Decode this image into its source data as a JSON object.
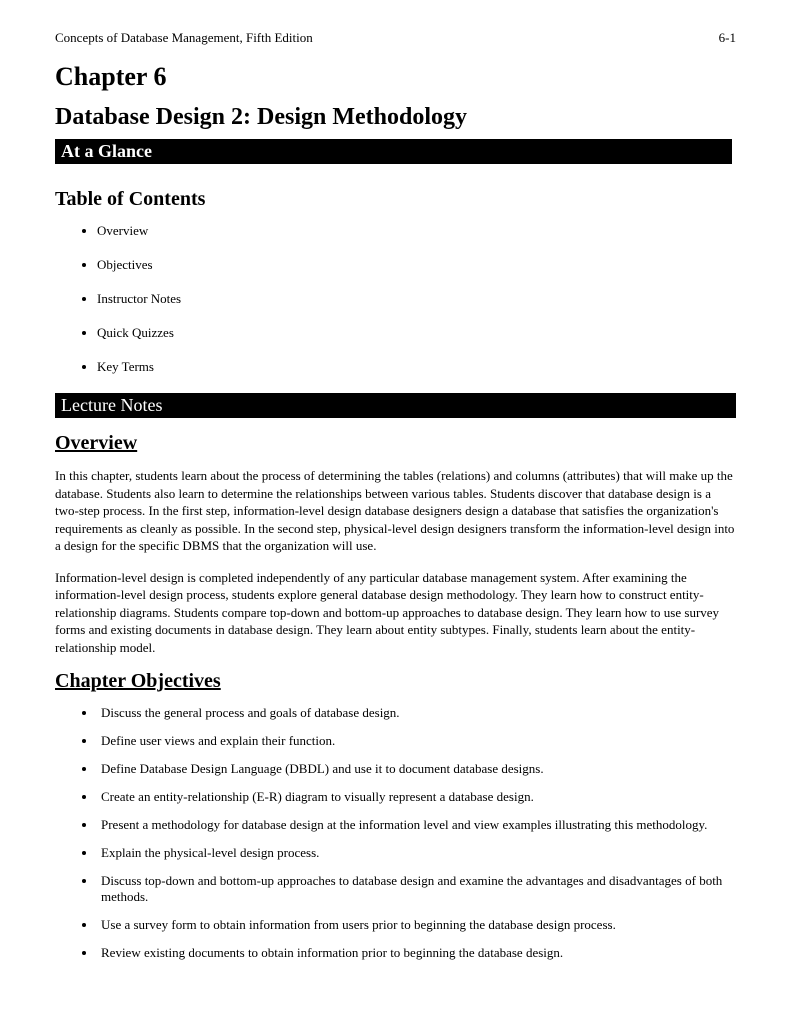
{
  "header": {
    "left": "Concepts of Database Management, Fifth Edition",
    "right": "6-1"
  },
  "chapter": {
    "number": "Chapter 6",
    "title": "Database Design 2: Design Methodology"
  },
  "bars": {
    "atAGlance": "At a Glance",
    "lectureNotes": "Lecture Notes"
  },
  "headings": {
    "toc": "Table of Contents",
    "overview": "Overview",
    "objectives": "Chapter Objectives"
  },
  "toc": {
    "items": [
      "Overview",
      "Objectives",
      "Instructor Notes",
      "Quick Quizzes",
      "Key Terms"
    ]
  },
  "overview": {
    "p1": "In this chapter, students learn about the process of determining the tables (relations) and columns (attributes) that will make up the database. Students also learn to determine the relationships between various tables. Students discover that database design is a two-step process. In the first step, information-level design database designers design a database that satisfies the organization's requirements as cleanly as possible. In the second step, physical-level design designers transform the information-level design into a design for the specific DBMS that the organization will use.",
    "p2": "Information-level design is completed independently of any particular database management system. After examining the information-level design process, students explore general database design methodology. They learn how to construct entity-relationship diagrams. Students compare top-down and bottom-up approaches to database design. They learn how to use survey forms and existing documents in database design. They learn about entity subtypes. Finally, students learn about the entity-relationship model."
  },
  "objectives": {
    "items": [
      "Discuss the general process and goals of database design.",
      "Define user views and explain their function.",
      "Define Database Design Language (DBDL) and use it to document database designs.",
      "Create an entity-relationship (E-R) diagram to visually represent a database design.",
      "Present a methodology for database design at the information level and view examples illustrating this methodology.",
      "Explain the physical-level design process.",
      "Discuss top-down and bottom-up approaches to database design and examine the advantages and disadvantages of both methods.",
      "Use a survey form to obtain information from users prior to beginning the database design process.",
      "Review existing documents to obtain information prior to beginning the database design."
    ]
  }
}
